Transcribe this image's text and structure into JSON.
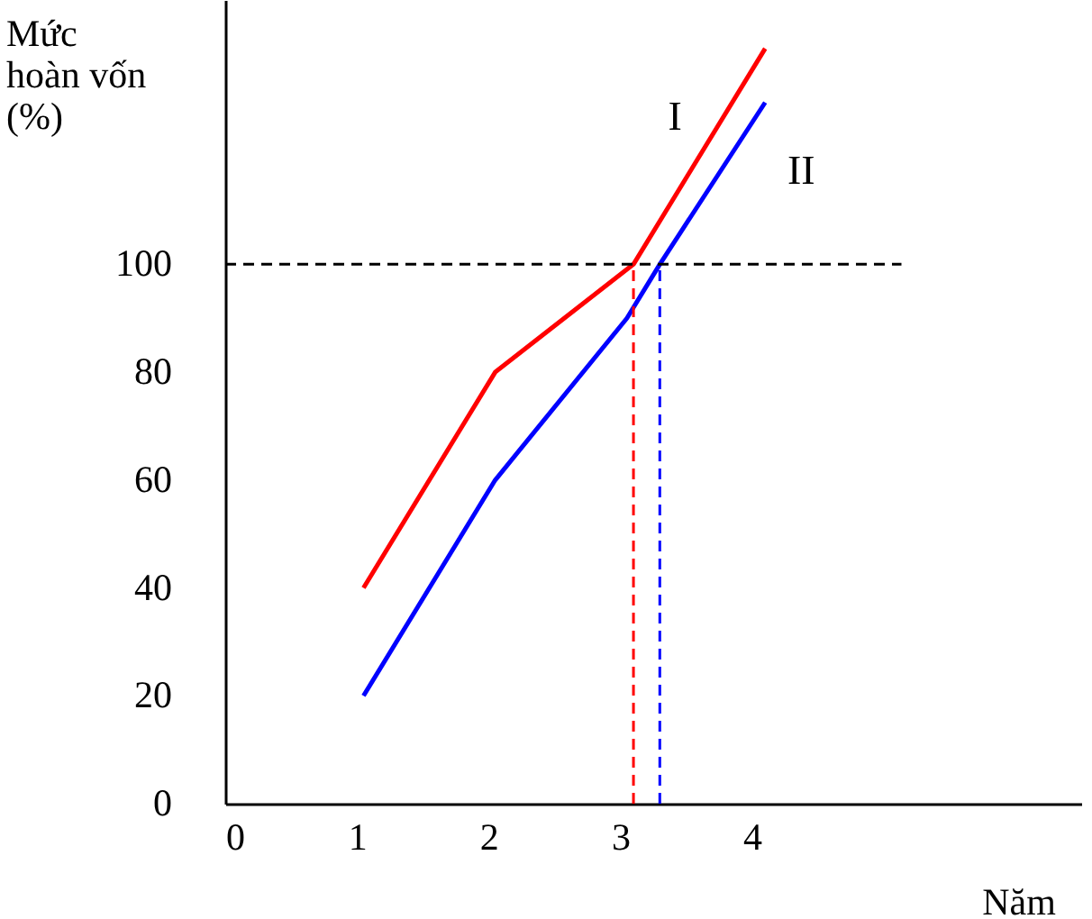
{
  "chart_data": {
    "type": "line",
    "ylabel": "Mức\nhoàn vốn\n(%)",
    "xlabel": "Năm",
    "series": [
      {
        "name": "I",
        "color": "#ff0000",
        "x": [
          1.05,
          2.05,
          3.1,
          4.1
        ],
        "values": [
          40,
          80,
          100,
          140
        ]
      },
      {
        "name": "II",
        "color": "#0000ff",
        "x": [
          1.05,
          2.05,
          3.05,
          3.3,
          4.1
        ],
        "values": [
          20,
          60,
          90,
          100,
          130
        ]
      }
    ],
    "xlim": [
      0,
      6.5
    ],
    "ylim": [
      0,
      149
    ],
    "xticks": [
      0,
      1,
      2,
      3,
      4
    ],
    "yticks": [
      0,
      20,
      40,
      60,
      80,
      100
    ],
    "ref_lines": [
      {
        "axis": "y",
        "value": 100,
        "color": "#000000",
        "line_style": "dashed"
      },
      {
        "axis": "x",
        "value": 3.1,
        "color": "#ff0000",
        "line_style": "dashed"
      },
      {
        "axis": "x",
        "value": 3.3,
        "color": "#0000ff",
        "line_style": "dashed"
      }
    ],
    "grid": false,
    "marker": "none",
    "line_style": "solid"
  }
}
